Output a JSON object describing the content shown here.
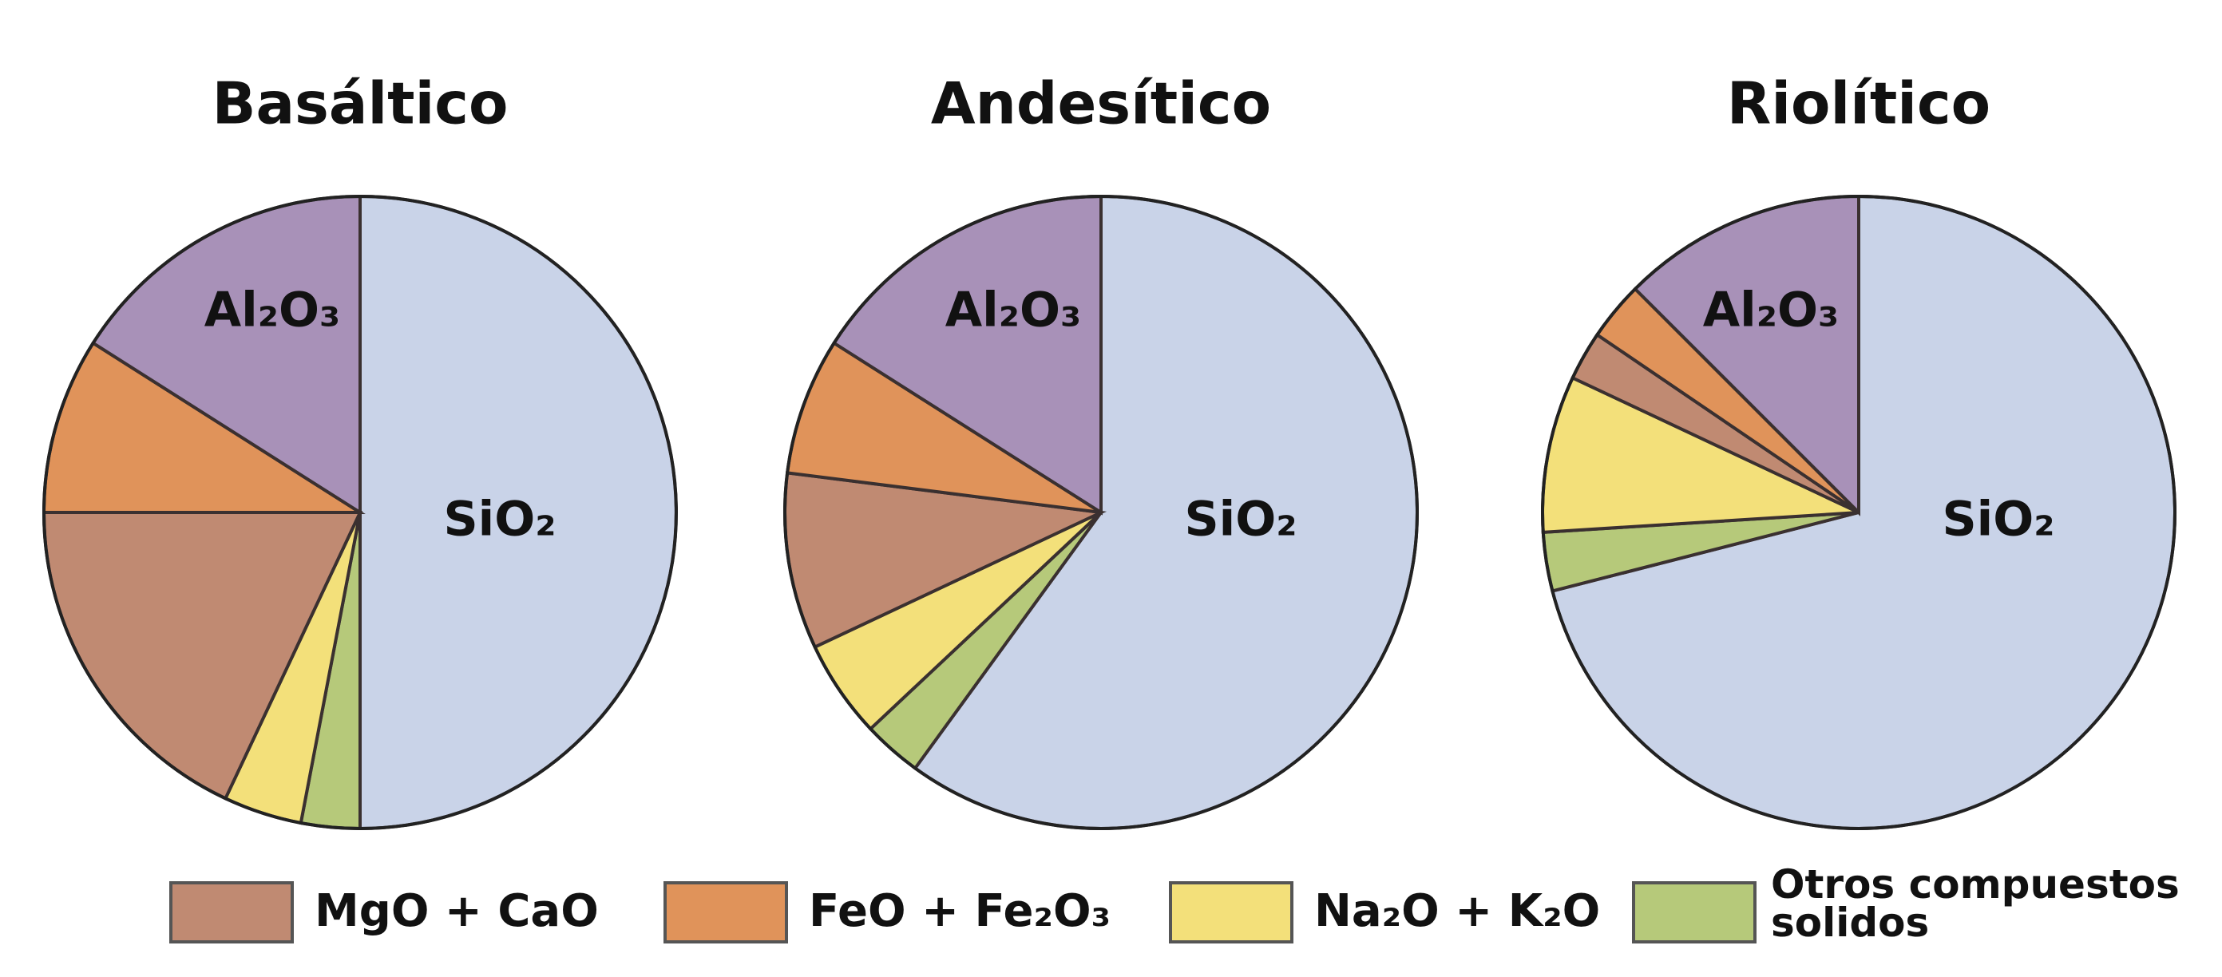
{
  "chart_data": [
    {
      "type": "pie",
      "title": "Basáltico",
      "categories": [
        "SiO₂",
        "Otros compuestos solidos",
        "Na₂O + K₂O",
        "MgO + CaO",
        "FeO + Fe₂O₃",
        "Al₂O₃"
      ],
      "values": [
        50,
        3,
        4,
        18,
        9,
        16
      ],
      "labeled": [
        true,
        false,
        false,
        false,
        false,
        true
      ],
      "colors": [
        "#c9d3e8",
        "#b6c97a",
        "#f3e07a",
        "#c08a72",
        "#e0935a",
        "#a891b8"
      ]
    },
    {
      "type": "pie",
      "title": "Andesítico",
      "categories": [
        "SiO₂",
        "Otros compuestos solidos",
        "Na₂O + K₂O",
        "MgO + CaO",
        "FeO + Fe₂O₃",
        "Al₂O₃"
      ],
      "values": [
        60,
        3,
        5,
        9,
        7,
        16
      ],
      "labeled": [
        true,
        false,
        false,
        false,
        false,
        true
      ],
      "colors": [
        "#c9d3e8",
        "#b6c97a",
        "#f3e07a",
        "#c08a72",
        "#e0935a",
        "#a891b8"
      ]
    },
    {
      "type": "pie",
      "title": "Riolítico",
      "categories": [
        "SiO₂",
        "Otros compuestos solidos",
        "Na₂O + K₂O",
        "MgO + CaO",
        "FeO + Fe₂O₃",
        "Al₂O₃"
      ],
      "values": [
        71,
        3,
        8,
        2.5,
        3,
        12.5
      ],
      "labeled": [
        true,
        false,
        false,
        false,
        false,
        true
      ],
      "colors": [
        "#c9d3e8",
        "#b6c97a",
        "#f3e07a",
        "#c08a72",
        "#e0935a",
        "#a891b8"
      ]
    }
  ]
}
